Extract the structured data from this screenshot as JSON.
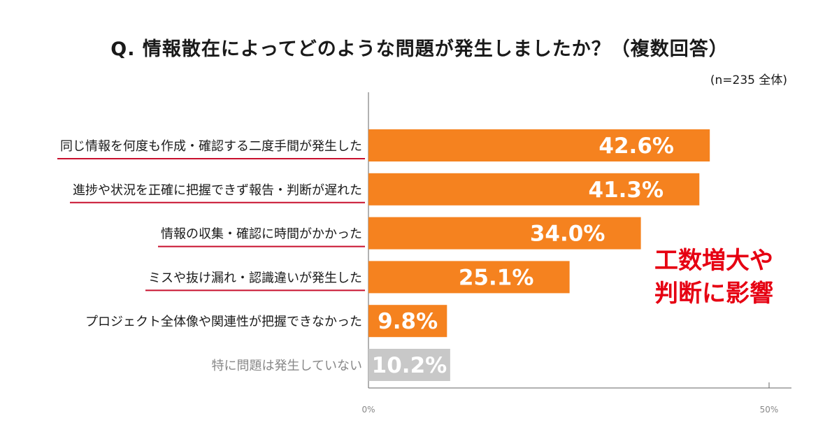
{
  "header": {
    "title": "Q. 情報散在によってどのような問題が発生しましたか？（複数回答）",
    "sample_note": "(n=235 全体)"
  },
  "callout": {
    "line1": "工数増大や",
    "line2": "判断に影響",
    "color": "#e60012"
  },
  "chart_data": {
    "type": "bar",
    "orientation": "horizontal",
    "title": "Q. 情報散在によってどのような問題が発生しましたか？（複数回答）",
    "categories": [
      "同じ情報を何度も作成・確認する二度手間が発生した",
      "進捗や状況を正確に把握できず報告・判断が遅れた",
      "情報の収集・確認に時間がかかった",
      "ミスや抜け漏れ・認識違いが発生した",
      "プロジェクト全体像や関連性が把握できなかった",
      "特に問題は発生していない"
    ],
    "values": [
      42.6,
      41.3,
      34.0,
      25.1,
      9.8,
      10.2
    ],
    "value_labels": [
      "42.6%",
      "41.3%",
      "34.0%",
      "25.1%",
      "9.8%",
      "10.2%"
    ],
    "bar_colors": [
      "#f5821f",
      "#f5821f",
      "#f5821f",
      "#f5821f",
      "#f5821f",
      "#c8c8c8"
    ],
    "label_colors": [
      "#1a1a1a",
      "#1a1a1a",
      "#1a1a1a",
      "#1a1a1a",
      "#1a1a1a",
      "#888888"
    ],
    "underlined": [
      true,
      true,
      true,
      true,
      false,
      false
    ],
    "underline_color": "#c8102e",
    "x_ticks": [
      {
        "value": 0,
        "label": "0%"
      },
      {
        "value": 50,
        "label": "50%"
      }
    ],
    "xlim": [
      0,
      50
    ],
    "grid": false
  }
}
